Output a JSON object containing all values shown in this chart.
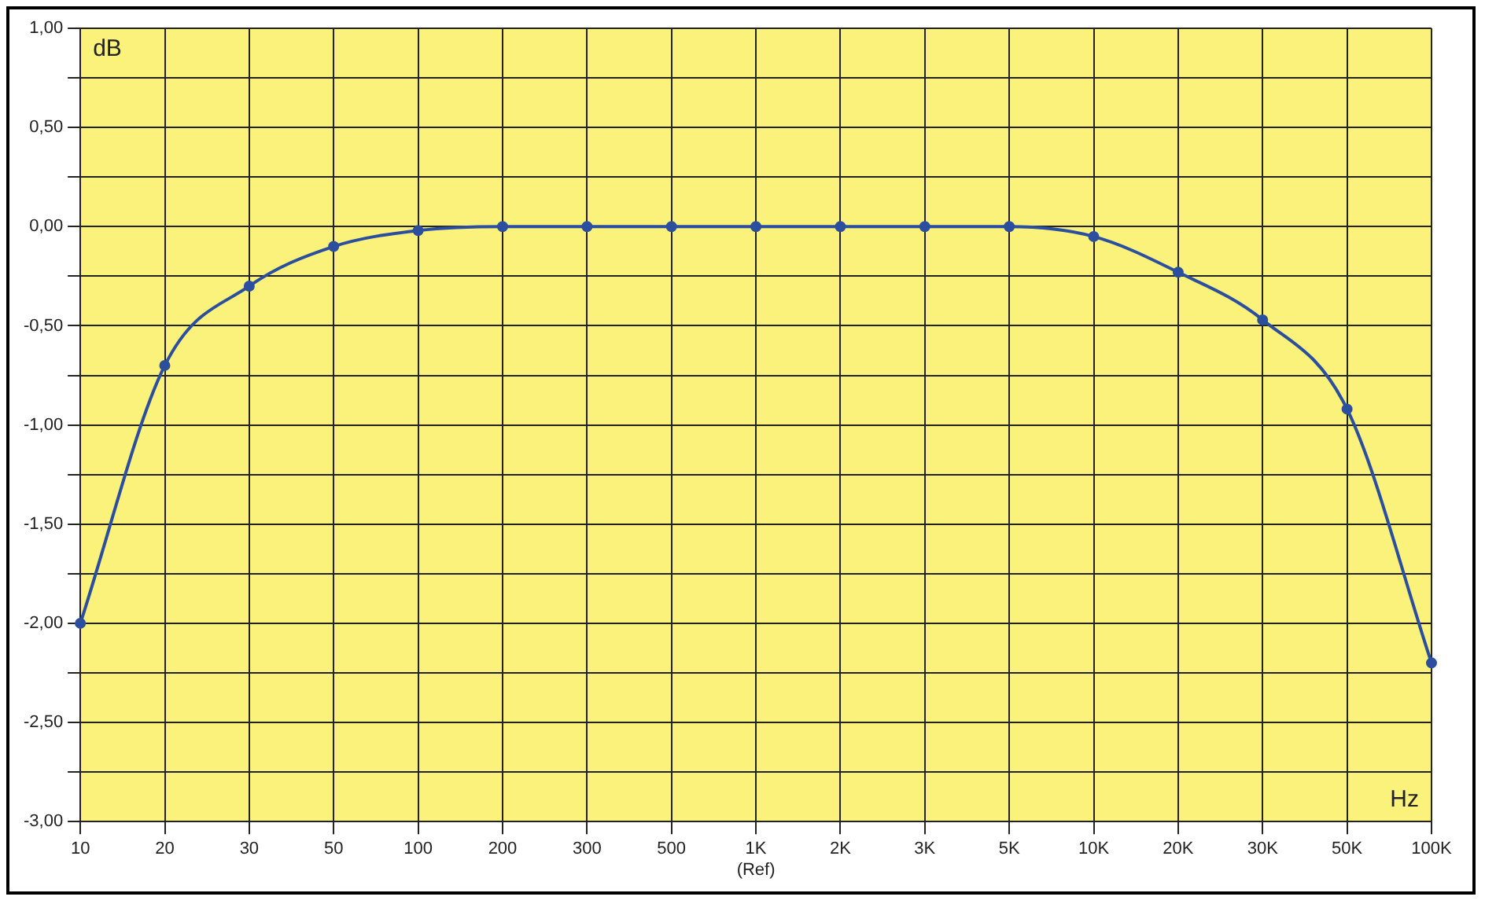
{
  "chart_data": {
    "type": "line",
    "categories": [
      "10",
      "20",
      "30",
      "50",
      "100",
      "200",
      "300",
      "500",
      "1K (Ref)",
      "2K",
      "3K",
      "5K",
      "10K",
      "20K",
      "30K",
      "50K",
      "100K"
    ],
    "series": [
      {
        "color": "#2b4f9e",
        "values": [
          -2.0,
          -0.7,
          -0.3,
          -0.1,
          -0.02,
          0,
          0,
          0,
          0,
          0,
          0,
          0,
          -0.05,
          -0.23,
          -0.47,
          -0.92,
          -2.2
        ]
      }
    ],
    "ylim": [
      -3,
      1
    ],
    "yticks": [
      {
        "value": -3,
        "label": "-3,00"
      },
      {
        "value": -2.75,
        "label": null
      },
      {
        "value": -2.5,
        "label": "-2,50"
      },
      {
        "value": -2.25,
        "label": null
      },
      {
        "value": -2,
        "label": "-2,00"
      },
      {
        "value": -1.75,
        "label": null
      },
      {
        "value": -1.5,
        "label": "-1,50"
      },
      {
        "value": -1.25,
        "label": null
      },
      {
        "value": -1,
        "label": "-1,00"
      },
      {
        "value": -0.75,
        "label": null
      },
      {
        "value": -0.5,
        "label": "-0,50"
      },
      {
        "value": -0.25,
        "label": null
      },
      {
        "value": 0,
        "label": "0,00"
      },
      {
        "value": 0.25,
        "label": null
      },
      {
        "value": 0.5,
        "label": "0,50"
      },
      {
        "value": 0.75,
        "label": null
      },
      {
        "value": 1,
        "label": "1,00"
      }
    ],
    "annotations": [
      "dB",
      "Hz"
    ],
    "grid": true,
    "legend": false,
    "marker": "circle",
    "line_style": "solid"
  }
}
